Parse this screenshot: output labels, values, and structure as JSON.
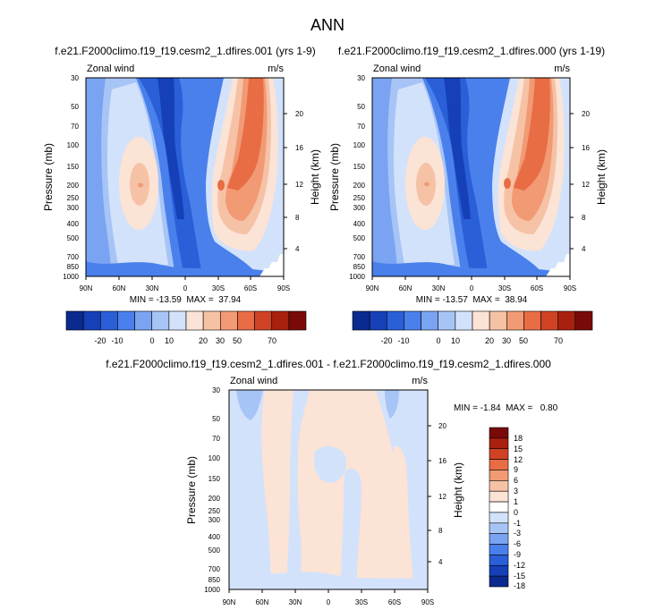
{
  "page": {
    "title": "ANN"
  },
  "chart_data": [
    {
      "type": "heatmap",
      "title": "f.e21.F2000climo.f19_f19.cesm2_1.dfires.001 (yrs 1-9)",
      "left_label": "Zonal wind",
      "right_label": "m/s",
      "ylabel": "Pressure (mb)",
      "ylabel_right": "Height (km)",
      "x_ticks": [
        "90N",
        "60N",
        "30N",
        "0",
        "30S",
        "60S",
        "90S"
      ],
      "y_ticks": [
        "30",
        "50",
        "70",
        "100",
        "150",
        "200",
        "250",
        "300",
        "400",
        "500",
        "700",
        "850",
        "1000"
      ],
      "y_ticks_right": [
        "20",
        "16",
        "12",
        "8",
        "4"
      ],
      "min_max_text": "MIN = -13.59  MAX =  37.94",
      "min": -13.59,
      "max": 37.94,
      "colorbar_ticks": [
        "-20",
        "-10",
        "0",
        "10",
        "20",
        "30",
        "50",
        "70"
      ]
    },
    {
      "type": "heatmap",
      "title": "f.e21.F2000climo.f19_f19.cesm2_1.dfires.000 (yrs 1-19)",
      "left_label": "Zonal wind",
      "right_label": "m/s",
      "ylabel": "Pressure (mb)",
      "ylabel_right": "Height (km)",
      "x_ticks": [
        "90N",
        "60N",
        "30N",
        "0",
        "30S",
        "60S",
        "90S"
      ],
      "y_ticks": [
        "30",
        "50",
        "70",
        "100",
        "150",
        "200",
        "250",
        "300",
        "400",
        "500",
        "700",
        "850",
        "1000"
      ],
      "y_ticks_right": [
        "20",
        "16",
        "12",
        "8",
        "4"
      ],
      "min_max_text": "MIN = -13.57  MAX =  38.94",
      "min": -13.57,
      "max": 38.94,
      "colorbar_ticks": [
        "-20",
        "-10",
        "0",
        "10",
        "20",
        "30",
        "50",
        "70"
      ]
    },
    {
      "type": "heatmap",
      "title": "f.e21.F2000climo.f19_f19.cesm2_1.dfires.001 - f.e21.F2000climo.f19_f19.cesm2_1.dfires.000",
      "left_label": "Zonal wind",
      "right_label": "m/s",
      "ylabel": "Pressure (mb)",
      "ylabel_right": "Height (km)",
      "x_ticks": [
        "90N",
        "60N",
        "30N",
        "0",
        "30S",
        "60S",
        "90S"
      ],
      "y_ticks": [
        "30",
        "50",
        "70",
        "100",
        "150",
        "200",
        "250",
        "300",
        "400",
        "500",
        "700",
        "850",
        "1000"
      ],
      "y_ticks_right": [
        "20",
        "16",
        "12",
        "8",
        "4"
      ],
      "min_max_text": "MIN = -1.84  MAX =   0.80",
      "min": -1.84,
      "max": 0.8,
      "colorbar_ticks": [
        "18",
        "15",
        "12",
        "9",
        "6",
        "3",
        "1",
        "0",
        "-1",
        "-3",
        "-6",
        "-9",
        "-12",
        "-15",
        "-18"
      ]
    }
  ],
  "palette": {
    "top_levels": [
      "#0a2a8f",
      "#1540b8",
      "#2a5fd8",
      "#4a80ec",
      "#7aa4f2",
      "#a7c4f7",
      "#d3e2fb",
      "#fbe3d6",
      "#f6c2a6",
      "#f19a74",
      "#e86c44",
      "#cf4324",
      "#a8200f",
      "#7a0a0a"
    ],
    "diff_levels": [
      "#7a0a0a",
      "#a8200f",
      "#cf4324",
      "#e86c44",
      "#f19a74",
      "#f6c2a6",
      "#fbe3d6",
      "#ffffff",
      "#d3e2fb",
      "#a7c4f7",
      "#7aa4f2",
      "#4a80ec",
      "#2a5fd8",
      "#1540b8",
      "#0a2a8f"
    ]
  }
}
